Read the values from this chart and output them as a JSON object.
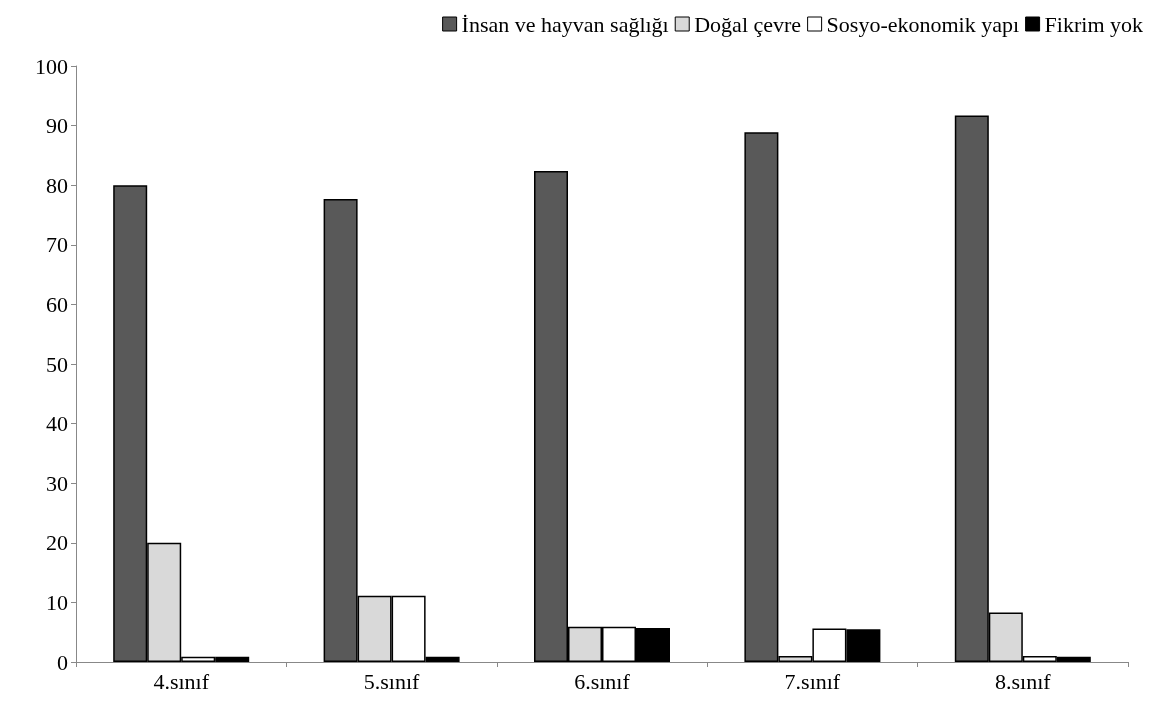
{
  "chart_data": {
    "type": "bar",
    "categories": [
      "4.sınıf",
      "5.sınıf",
      "6.sınıf",
      "7.sınıf",
      "8.sınıf"
    ],
    "series": [
      {
        "name": "İnsan ve hayvan sağlığı",
        "color": "#595959",
        "values": [
          80,
          77.7,
          82.4,
          88.9,
          91.7
        ]
      },
      {
        "name": "Doğal çevre",
        "color": "#d9d9d9",
        "values": [
          20,
          11.1,
          5.9,
          1,
          8.3
        ]
      },
      {
        "name": "Sosyo-ekonomik yapı",
        "color": "#ffffff",
        "values": [
          0.9,
          11.1,
          5.9,
          5.6,
          1
        ]
      },
      {
        "name": "Fikrim yok",
        "color": "#000000",
        "values": [
          0.9,
          0.9,
          5.7,
          5.5,
          0.9
        ]
      }
    ],
    "ylim": [
      0,
      100
    ],
    "yticks": [
      0,
      10,
      20,
      30,
      40,
      50,
      60,
      70,
      80,
      90,
      100
    ],
    "grid": false,
    "legend": "top right"
  }
}
